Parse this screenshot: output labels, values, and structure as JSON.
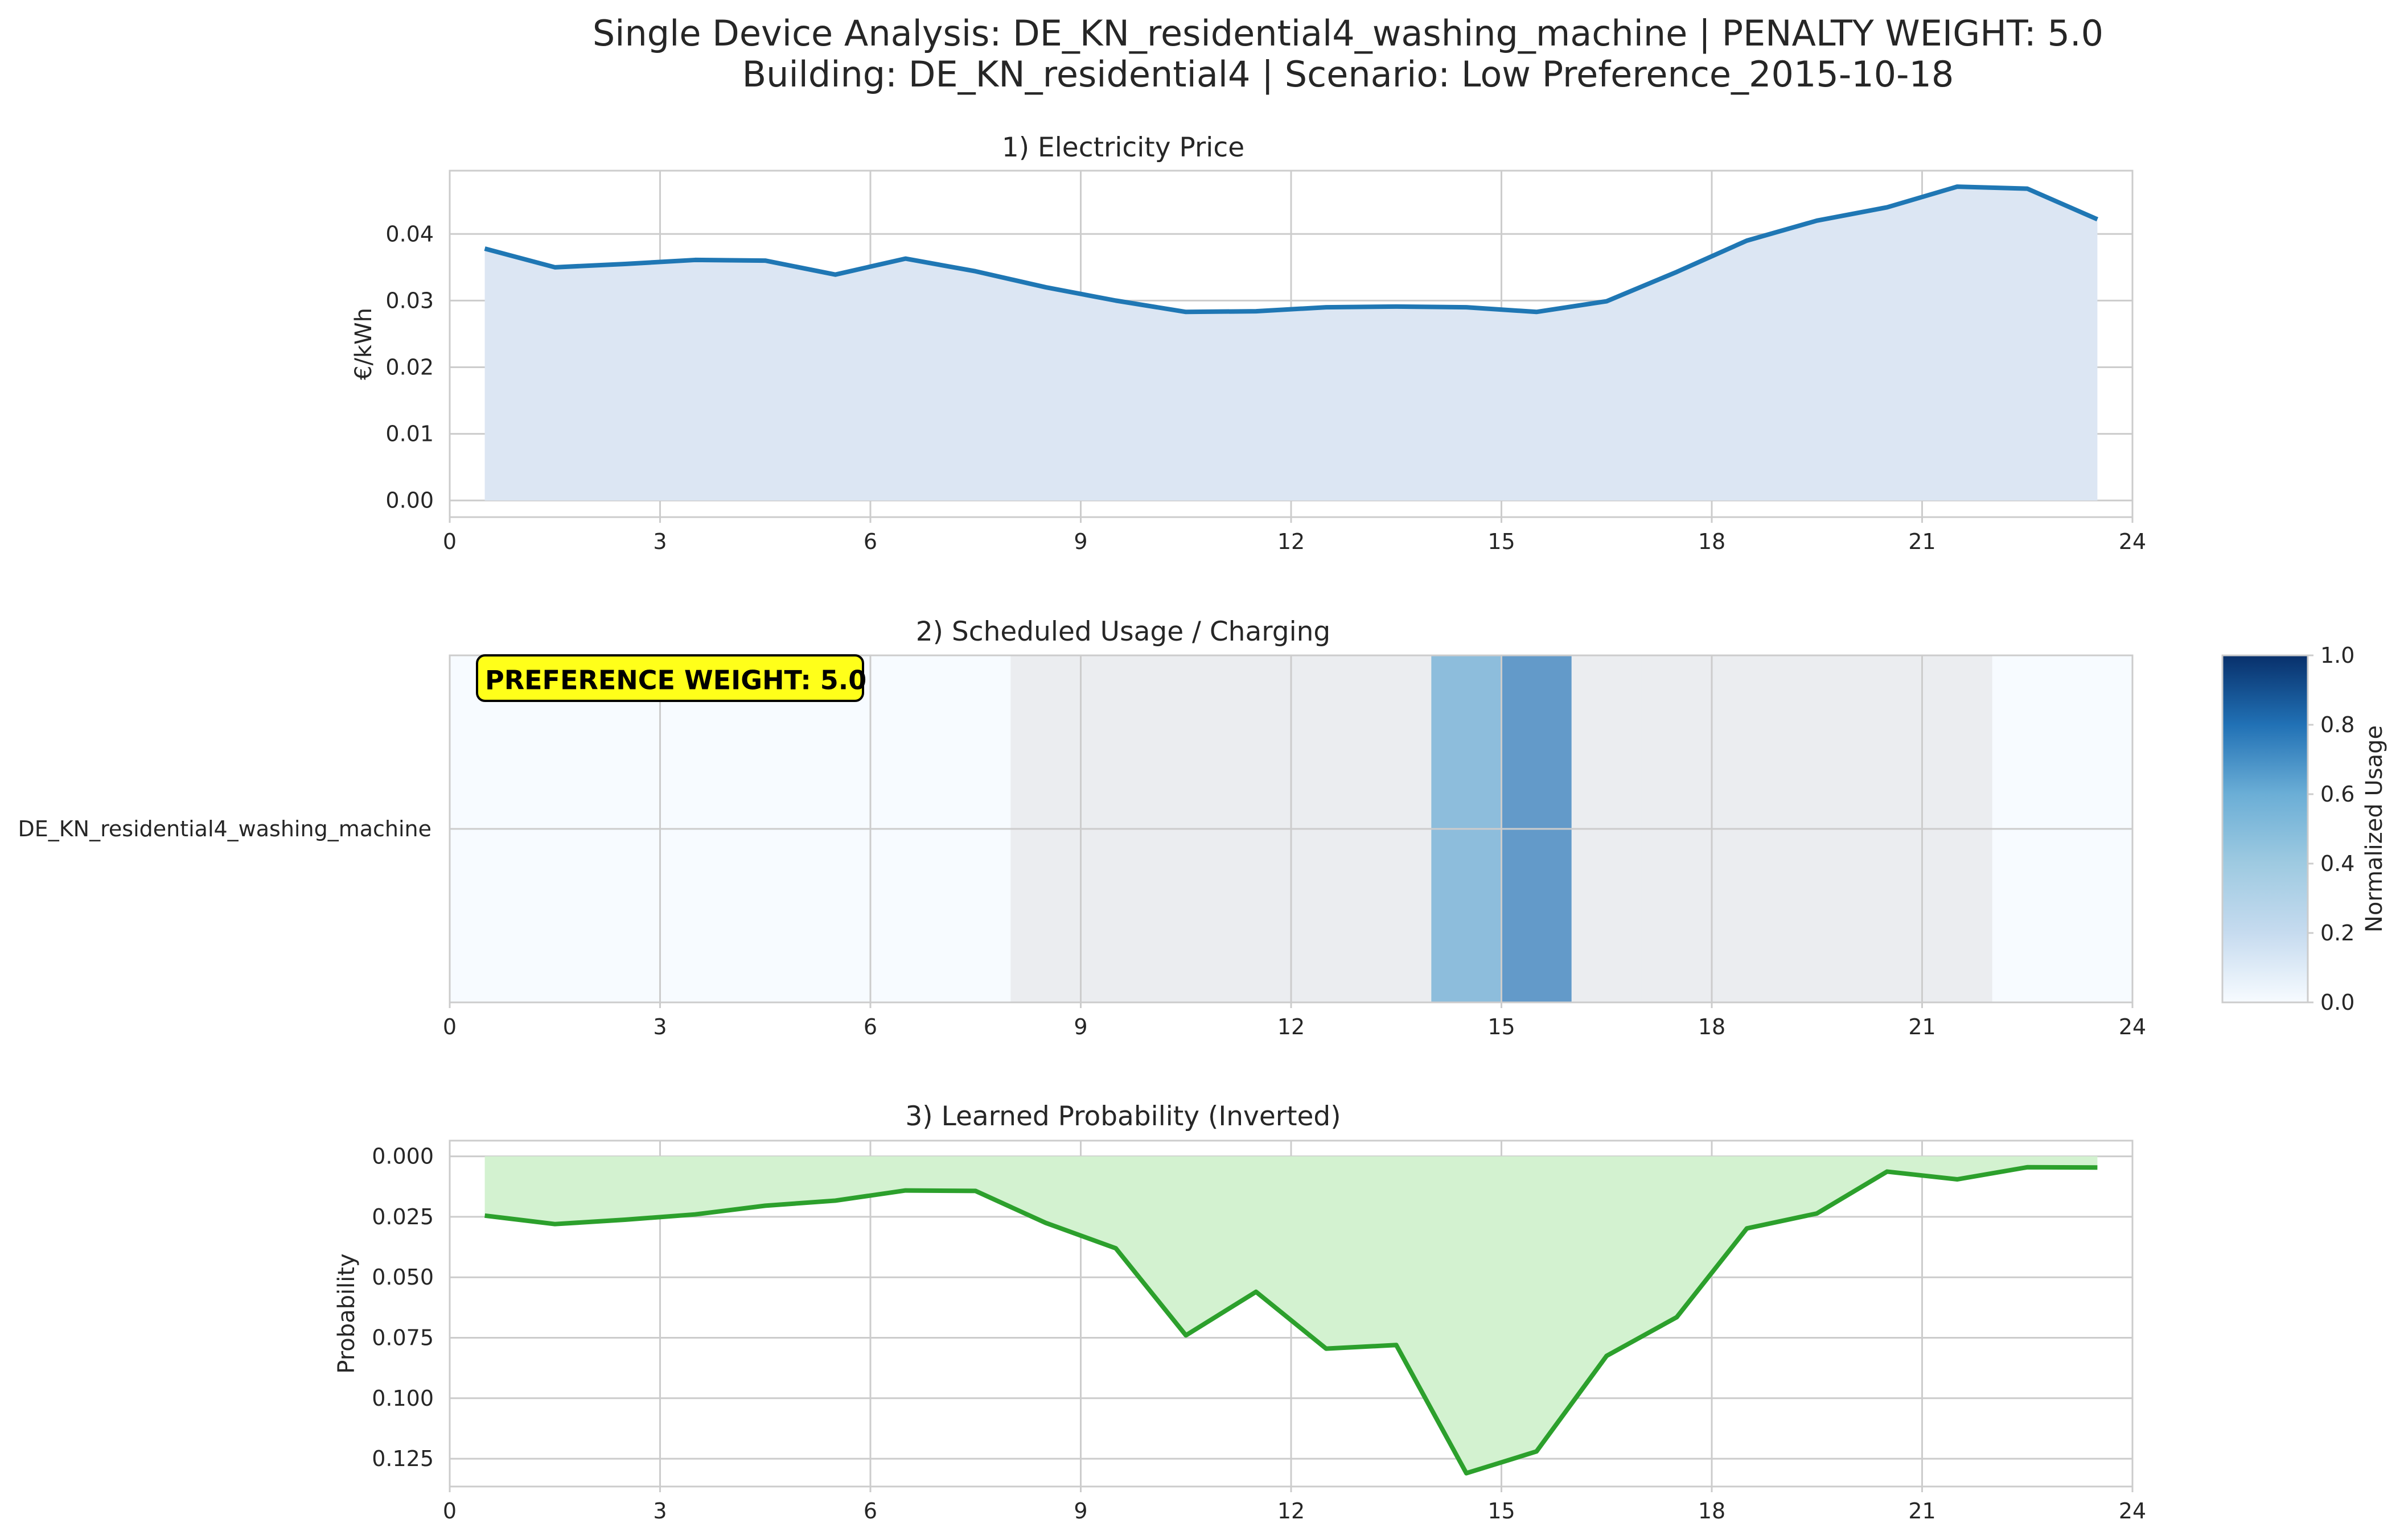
{
  "figure": {
    "title_line1": "Single Device Analysis: DE_KN_residential4_washing_machine | PENALTY WEIGHT: 5.0",
    "title_line2": "Building: DE_KN_residential4 | Scenario: Low Preference_2015-10-18"
  },
  "colors": {
    "price_line": "#1f77b4",
    "price_fill": "#dce6f3",
    "prob_line": "#2ca02c",
    "prob_fill": "#d3f2d0",
    "heat_inactive": "#ebedf0",
    "annotation_bg": "#ffff1a"
  },
  "chart_data": [
    {
      "type": "area",
      "title": "1) Electricity Price",
      "xlabel": "",
      "ylabel": "€/kWh",
      "xlim": [
        0,
        24
      ],
      "ylim": [
        -0.0025,
        0.0495
      ],
      "xticks": [
        0,
        3,
        6,
        9,
        12,
        15,
        18,
        21,
        24
      ],
      "yticks": [
        0.0,
        0.01,
        0.02,
        0.03,
        0.04
      ],
      "ytick_labels": [
        "0.00",
        "0.01",
        "0.02",
        "0.03",
        "0.04"
      ],
      "grid": true,
      "x": [
        0.5,
        1.5,
        2.5,
        3.5,
        4.5,
        5.5,
        6.5,
        7.5,
        8.5,
        9.5,
        10.5,
        11.5,
        12.5,
        13.5,
        14.5,
        15.5,
        16.5,
        17.5,
        18.5,
        19.5,
        20.5,
        21.5,
        22.5,
        23.5
      ],
      "series": [
        {
          "values": [
            0.0378,
            0.035,
            0.0355,
            0.0361,
            0.036,
            0.0339,
            0.0363,
            0.0344,
            0.032,
            0.03,
            0.0283,
            0.0284,
            0.029,
            0.0291,
            0.029,
            0.0283,
            0.0299,
            0.0343,
            0.039,
            0.042,
            0.044,
            0.0471,
            0.0468,
            0.0422
          ]
        }
      ]
    },
    {
      "type": "heatmap",
      "title": "2) Scheduled Usage / Charging",
      "xlim": [
        0,
        24
      ],
      "xticks": [
        0,
        3,
        6,
        9,
        12,
        15,
        18,
        21,
        24
      ],
      "row_labels": [
        "DE_KN_residential4_washing_machine"
      ],
      "hours": [
        0,
        1,
        2,
        3,
        4,
        5,
        6,
        7,
        8,
        9,
        10,
        11,
        12,
        13,
        14,
        15,
        16,
        17,
        18,
        19,
        20,
        21,
        22,
        23
      ],
      "values": [
        [
          0,
          0,
          0,
          0,
          0,
          0,
          0,
          0,
          0,
          0,
          0,
          0,
          0,
          0,
          0.62,
          0.78,
          0,
          0,
          0,
          0,
          0,
          0,
          0,
          0
        ]
      ],
      "allowed_window": [
        0,
        0,
        0,
        0,
        0,
        0,
        0,
        0,
        1,
        1,
        1,
        1,
        1,
        1,
        1,
        1,
        1,
        1,
        1,
        1,
        1,
        1,
        0,
        0
      ],
      "annotation": "PREFERENCE WEIGHT: 5.0",
      "colorbar": {
        "label": "Normalized Usage",
        "range": [
          0,
          1
        ],
        "ticks": [
          "0.0",
          "0.2",
          "0.4",
          "0.6",
          "0.8",
          "1.0"
        ]
      }
    },
    {
      "type": "area",
      "title": "3) Learned Probability (Inverted)",
      "xlabel": "",
      "ylabel": "Probability",
      "inverted_y": true,
      "xlim": [
        0,
        24
      ],
      "ylim": [
        0.1365,
        -0.0065
      ],
      "xticks": [
        0,
        3,
        6,
        9,
        12,
        15,
        18,
        21,
        24
      ],
      "yticks": [
        0.0,
        0.025,
        0.05,
        0.075,
        0.1,
        0.125
      ],
      "ytick_labels": [
        "0.000",
        "0.025",
        "0.050",
        "0.075",
        "0.100",
        "0.125"
      ],
      "grid": true,
      "x": [
        0.5,
        1.5,
        2.5,
        3.5,
        4.5,
        5.5,
        6.5,
        7.5,
        8.5,
        9.5,
        10.5,
        11.5,
        12.5,
        13.5,
        14.5,
        15.5,
        16.5,
        17.5,
        18.5,
        19.5,
        20.5,
        21.5,
        22.5,
        23.5
      ],
      "series": [
        {
          "values": [
            0.0245,
            0.028,
            0.0262,
            0.024,
            0.0204,
            0.0183,
            0.0141,
            0.0143,
            0.0275,
            0.038,
            0.074,
            0.056,
            0.0795,
            0.078,
            0.131,
            0.122,
            0.0825,
            0.0665,
            0.0298,
            0.0236,
            0.0063,
            0.0095,
            0.0045,
            0.0046
          ]
        }
      ]
    }
  ]
}
